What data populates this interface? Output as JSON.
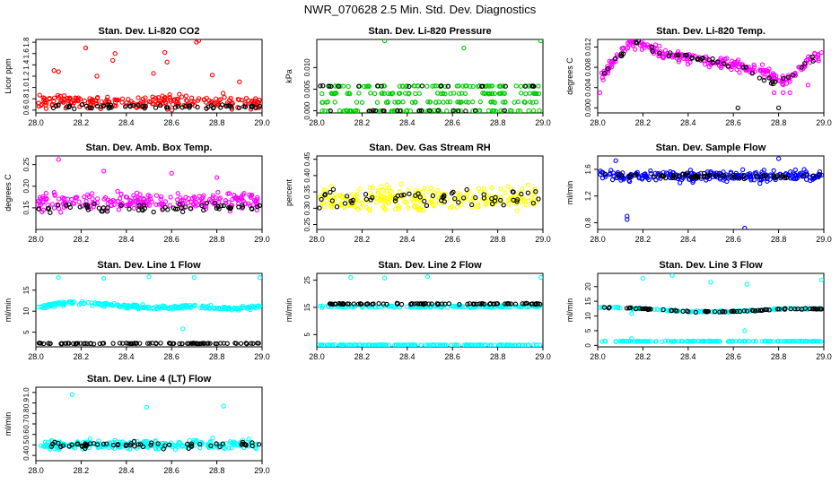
{
  "figure_title": "NWR_070628  2.5 Min. Std. Dev. Diagnostics",
  "colors": {
    "axis": "#000000",
    "background": "#ffffff"
  },
  "chart_data": [
    {
      "type": "scatter",
      "title": "Stan. Dev. Li-820 CO2",
      "ylabel": "Licor ppm",
      "xlim": [
        28.0,
        29.0
      ],
      "ylim": [
        0.55,
        1.85
      ],
      "xticks": [
        "28.0",
        "28.2",
        "28.4",
        "28.6",
        "28.8",
        "29.0"
      ],
      "yticks": [
        0.6,
        0.8,
        1.0,
        1.2,
        1.4,
        1.6,
        1.8
      ],
      "ytick_labels": [
        "0.6",
        "0.8",
        "1.0",
        "1.2",
        "1.4",
        "1.6",
        "1.8"
      ],
      "series": [
        {
          "name": "primary",
          "color": "#ff0000",
          "base": 0.75,
          "spread": 0.18,
          "n": 220,
          "outliers": [
            [
              28.08,
              1.3
            ],
            [
              28.1,
              1.28
            ],
            [
              28.22,
              1.7
            ],
            [
              28.27,
              1.2
            ],
            [
              28.34,
              1.48
            ],
            [
              28.35,
              1.6
            ],
            [
              28.52,
              1.25
            ],
            [
              28.57,
              1.62
            ],
            [
              28.58,
              1.45
            ],
            [
              28.71,
              1.8
            ],
            [
              28.72,
              1.83
            ],
            [
              28.78,
              1.22
            ],
            [
              28.9,
              1.1
            ]
          ]
        },
        {
          "name": "reference",
          "color": "#000000",
          "base": 0.66,
          "spread": 0.05,
          "n": 60,
          "outliers": []
        }
      ]
    },
    {
      "type": "scatter",
      "title": "Stan. Dev. Li-820 Pressure",
      "ylabel": "kPa",
      "xlim": [
        28.0,
        29.0
      ],
      "ylim": [
        -0.0005,
        0.0165
      ],
      "xticks": [
        "28.0",
        "28.2",
        "28.4",
        "28.6",
        "28.8",
        "29.0"
      ],
      "yticks": [
        0.0,
        0.005,
        0.01
      ],
      "ytick_labels": [
        "0.000",
        "0.005",
        "0.010"
      ],
      "series": [
        {
          "name": "primary",
          "color": "#00cc00",
          "levels": [
            0.0,
            0.002,
            0.004,
            0.0057
          ],
          "n": 240,
          "outliers": [
            [
              28.3,
              0.0162
            ],
            [
              28.65,
              0.0145
            ],
            [
              28.99,
              0.0162
            ]
          ]
        },
        {
          "name": "reference",
          "color": "#000000",
          "levels": [
            0.0,
            0.0057
          ],
          "n": 40,
          "outliers": []
        }
      ]
    },
    {
      "type": "scatter",
      "title": "Stan. Dev. Li-820 Temp.",
      "ylabel": "degrees C",
      "xlim": [
        28.0,
        29.0
      ],
      "ylim": [
        -0.001,
        0.0135
      ],
      "xticks": [
        "28.0",
        "28.2",
        "28.4",
        "28.6",
        "28.8",
        "29.0"
      ],
      "yticks": [
        0.0,
        0.004,
        0.008,
        0.012
      ],
      "ytick_labels": [
        "0.000",
        "0.004",
        "0.008",
        "0.012"
      ],
      "series": [
        {
          "name": "primary",
          "color": "#ff00ff",
          "curve": [
            [
              28.0,
              0.005
            ],
            [
              28.05,
              0.008
            ],
            [
              28.1,
              0.011
            ],
            [
              28.15,
              0.013
            ],
            [
              28.22,
              0.0125
            ],
            [
              28.3,
              0.0105
            ],
            [
              28.45,
              0.0095
            ],
            [
              28.6,
              0.0085
            ],
            [
              28.72,
              0.0075
            ],
            [
              28.8,
              0.005
            ],
            [
              28.86,
              0.006
            ],
            [
              28.92,
              0.009
            ],
            [
              29.0,
              0.011
            ]
          ],
          "spread": 0.0015,
          "n": 260,
          "outliers": [
            [
              28.01,
              0.003
            ],
            [
              28.78,
              0.003
            ],
            [
              28.82,
              0.003
            ],
            [
              28.85,
              0.003
            ],
            [
              28.93,
              0.0045
            ]
          ]
        },
        {
          "name": "reference",
          "color": "#000000",
          "curve": [
            [
              28.0,
              0.005
            ],
            [
              28.15,
              0.013
            ],
            [
              28.3,
              0.0105
            ],
            [
              28.6,
              0.0085
            ],
            [
              28.8,
              0.005
            ],
            [
              29.0,
              0.011
            ]
          ],
          "spread": 0.001,
          "n": 50,
          "outliers": [
            [
              28.62,
              0.0
            ],
            [
              28.8,
              0.0
            ]
          ]
        }
      ]
    },
    {
      "type": "scatter",
      "title": "Stan. Dev. Amb. Box Temp.",
      "ylabel": "degrees C",
      "xlim": [
        28.0,
        29.0
      ],
      "ylim": [
        0.1,
        0.27
      ],
      "xticks": [
        "28.0",
        "28.2",
        "28.4",
        "28.6",
        "28.8",
        "29.0"
      ],
      "yticks": [
        0.15,
        0.2,
        0.25
      ],
      "ytick_labels": [
        "0.15",
        "0.20",
        "0.25"
      ],
      "series": [
        {
          "name": "primary",
          "color": "#ff00ff",
          "base": 0.165,
          "spread": 0.03,
          "n": 230,
          "outliers": [
            [
              28.1,
              0.262
            ],
            [
              28.3,
              0.235
            ],
            [
              28.6,
              0.23
            ],
            [
              28.8,
              0.22
            ]
          ]
        },
        {
          "name": "reference",
          "color": "#000000",
          "base": 0.15,
          "spread": 0.015,
          "n": 60,
          "outliers": []
        }
      ]
    },
    {
      "type": "scatter",
      "title": "Stan. Dev. Gas Stream RH",
      "ylabel": "percent",
      "xlim": [
        28.0,
        29.0
      ],
      "ylim": [
        0.235,
        0.46
      ],
      "xticks": [
        "28.0",
        "28.2",
        "28.4",
        "28.6",
        "28.8",
        "29.0"
      ],
      "yticks": [
        0.25,
        0.3,
        0.35,
        0.4,
        0.45
      ],
      "ytick_labels": [
        "0.25",
        "0.30",
        "0.35",
        "0.40",
        "0.45"
      ],
      "series": [
        {
          "name": "primary",
          "color": "#ffff00",
          "base": 0.33,
          "spread": 0.055,
          "n": 240,
          "outliers": []
        },
        {
          "name": "reference",
          "color": "#000000",
          "base": 0.33,
          "spread": 0.04,
          "n": 60,
          "outliers": []
        }
      ]
    },
    {
      "type": "scatter",
      "title": "Stan. Dev. Sample Flow",
      "ylabel": "ml/min",
      "xlim": [
        28.0,
        29.0
      ],
      "ylim": [
        0.7,
        1.8
      ],
      "xticks": [
        "28.0",
        "28.2",
        "28.4",
        "28.6",
        "28.8",
        "29.0"
      ],
      "yticks": [
        0.8,
        1.2,
        1.6
      ],
      "ytick_labels": [
        "0.8",
        "1.2",
        "1.6"
      ],
      "series": [
        {
          "name": "primary",
          "color": "#0000ff",
          "base": 1.5,
          "spread": 0.12,
          "n": 260,
          "outliers": [
            [
              28.13,
              0.9
            ],
            [
              28.13,
              0.85
            ],
            [
              28.65,
              0.72
            ],
            [
              28.08,
              1.73
            ],
            [
              28.8,
              1.76
            ]
          ]
        },
        {
          "name": "reference",
          "color": "#000000",
          "base": 1.5,
          "spread": 0.06,
          "n": 60,
          "outliers": []
        }
      ]
    },
    {
      "type": "scatter",
      "title": "Stan. Dev. Line 1 Flow",
      "ylabel": "ml/min",
      "xlim": [
        28.0,
        29.0
      ],
      "ylim": [
        1.5,
        19.0
      ],
      "xticks": [
        "28.0",
        "28.2",
        "28.4",
        "28.6",
        "28.8",
        "29.0"
      ],
      "yticks": [
        5,
        10,
        15
      ],
      "ytick_labels": [
        "5",
        "10",
        "15"
      ],
      "series": [
        {
          "name": "primary",
          "color": "#00ffff",
          "curve": [
            [
              28.0,
              10.8
            ],
            [
              28.15,
              12.2
            ],
            [
              28.3,
              11.6
            ],
            [
              28.5,
              10.8
            ],
            [
              28.7,
              11.2
            ],
            [
              28.85,
              10.6
            ],
            [
              29.0,
              11.0
            ]
          ],
          "spread": 0.7,
          "n": 240,
          "outliers": [
            [
              28.1,
              18.0
            ],
            [
              28.3,
              17.8
            ],
            [
              28.5,
              18.2
            ],
            [
              28.7,
              18.0
            ],
            [
              28.99,
              18.0
            ],
            [
              28.65,
              5.8
            ]
          ]
        },
        {
          "name": "reference",
          "color": "#000000",
          "curve": [
            [
              28.0,
              2.3
            ],
            [
              29.0,
              2.3
            ]
          ],
          "spread": 0.15,
          "n": 90,
          "outliers": []
        }
      ]
    },
    {
      "type": "scatter",
      "title": "Stan. Dev. Line 2 Flow",
      "ylabel": "ml/min",
      "xlim": [
        28.0,
        29.0
      ],
      "ylim": [
        0.5,
        27.5
      ],
      "xticks": [
        "28.0",
        "28.2",
        "28.4",
        "28.6",
        "28.8",
        "29.0"
      ],
      "yticks": [
        5,
        15,
        25
      ],
      "ytick_labels": [
        "5",
        "15",
        "25"
      ],
      "series": [
        {
          "name": "upper-band",
          "color": "#00ffff",
          "curve": [
            [
              28.0,
              15.3
            ],
            [
              29.0,
              15.3
            ]
          ],
          "spread": 0.5,
          "n": 150,
          "outliers": [
            [
              28.15,
              26.0
            ],
            [
              28.49,
              26.3
            ],
            [
              28.99,
              26.0
            ],
            [
              28.3,
              25.8
            ]
          ]
        },
        {
          "name": "lower-band",
          "color": "#00ffff",
          "curve": [
            [
              28.0,
              1.2
            ],
            [
              29.0,
              1.2
            ]
          ],
          "spread": 0.15,
          "n": 150,
          "outliers": []
        },
        {
          "name": "reference",
          "color": "#000000",
          "curve": [
            [
              28.0,
              16.3
            ],
            [
              29.0,
              16.3
            ]
          ],
          "spread": 0.3,
          "n": 90,
          "outliers": []
        }
      ]
    },
    {
      "type": "scatter",
      "title": "Stan. Dev. Line 3 Flow",
      "ylabel": "ml/min",
      "xlim": [
        28.0,
        29.0
      ],
      "ylim": [
        -0.5,
        24.5
      ],
      "xticks": [
        "28.0",
        "28.2",
        "28.4",
        "28.6",
        "28.8",
        "29.0"
      ],
      "yticks": [
        0,
        5,
        10,
        15,
        20
      ],
      "ytick_labels": [
        "0",
        "5",
        "10",
        "15",
        "20"
      ],
      "series": [
        {
          "name": "upper-band",
          "color": "#00ffff",
          "curve": [
            [
              28.0,
              13.0
            ],
            [
              28.2,
              12.5
            ],
            [
              28.4,
              11.5
            ],
            [
              28.6,
              11.5
            ],
            [
              28.8,
              12.3
            ],
            [
              29.0,
              12.5
            ]
          ],
          "spread": 0.4,
          "n": 140,
          "outliers": [
            [
              28.15,
              10.8
            ],
            [
              28.2,
              22.8
            ],
            [
              28.33,
              23.8
            ],
            [
              28.5,
              21.5
            ],
            [
              28.66,
              20.8
            ],
            [
              28.99,
              22.3
            ],
            [
              28.65,
              5.0
            ]
          ]
        },
        {
          "name": "lower-band",
          "color": "#00ffff",
          "curve": [
            [
              28.0,
              1.4
            ],
            [
              29.0,
              1.4
            ]
          ],
          "spread": 0.15,
          "n": 150,
          "outliers": [
            [
              28.15,
              2.3
            ]
          ]
        },
        {
          "name": "reference",
          "color": "#000000",
          "curve": [
            [
              28.0,
              13.0
            ],
            [
              28.2,
              12.5
            ],
            [
              28.4,
              11.5
            ],
            [
              28.6,
              11.5
            ],
            [
              28.8,
              12.3
            ],
            [
              29.0,
              12.5
            ]
          ],
          "spread": 0.3,
          "n": 80,
          "outliers": []
        }
      ]
    },
    {
      "type": "scatter",
      "title": "Stan. Dev. Line 4 (LT) Flow",
      "ylabel": "ml/min",
      "xlim": [
        28.0,
        29.0
      ],
      "ylim": [
        0.35,
        1.05
      ],
      "xticks": [
        "28.0",
        "28.2",
        "28.4",
        "28.6",
        "28.8",
        "29.0"
      ],
      "yticks": [
        0.4,
        0.5,
        0.6,
        0.7,
        0.8,
        0.9,
        1.0
      ],
      "ytick_labels": [
        "0.4",
        "0.5",
        "0.6",
        "0.7",
        "0.8",
        "0.9",
        "1.0"
      ],
      "series": [
        {
          "name": "primary",
          "color": "#00ffff",
          "base": 0.5,
          "spread": 0.07,
          "n": 240,
          "outliers": [
            [
              28.16,
              0.98
            ],
            [
              28.49,
              0.86
            ],
            [
              28.83,
              0.87
            ]
          ]
        },
        {
          "name": "reference",
          "color": "#000000",
          "base": 0.5,
          "spread": 0.05,
          "n": 60,
          "outliers": []
        }
      ]
    }
  ]
}
